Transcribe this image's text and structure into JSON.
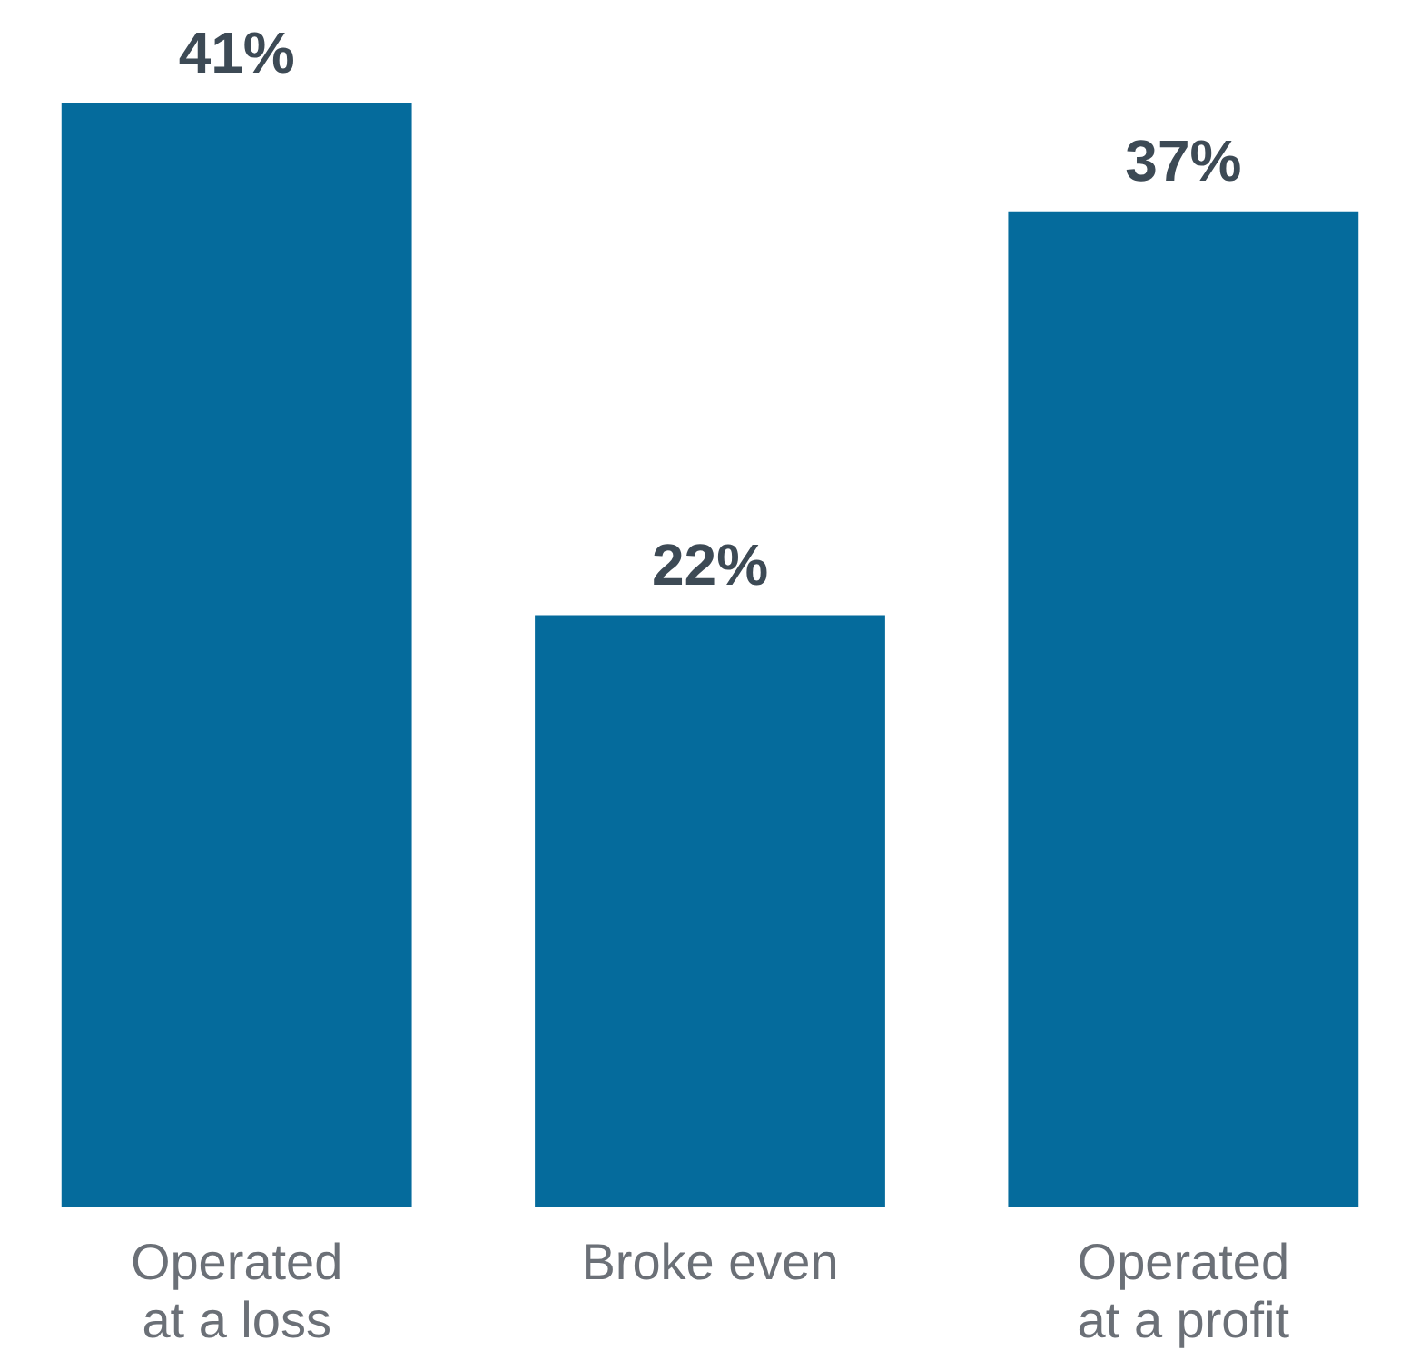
{
  "chart_data": {
    "type": "bar",
    "categories": [
      "Operated\nat a loss",
      "Broke even",
      "Operated\nat a profit"
    ],
    "values": [
      41,
      22,
      37
    ],
    "color": "#056b9c",
    "value_labels": [
      "41%",
      "22%",
      "37%"
    ]
  }
}
